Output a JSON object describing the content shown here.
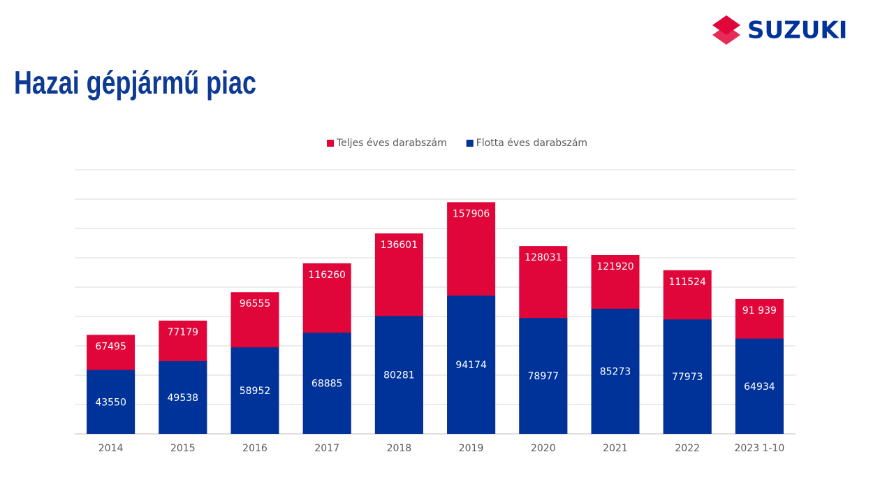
{
  "logo": "SUZUKI",
  "title": "Hazai gépjármű piac",
  "chart_data": {
    "type": "bar",
    "overlap": true,
    "categories": [
      "2014",
      "2015",
      "2016",
      "2017",
      "2018",
      "2019",
      "2020",
      "2021",
      "2022",
      "2023 1-10"
    ],
    "series": [
      {
        "name": "Teljes éves darabszám",
        "color": "#e0063a",
        "values": [
          67495,
          77179,
          96555,
          116260,
          136601,
          157906,
          128031,
          121920,
          111524,
          91939
        ],
        "value_labels": [
          "67495",
          "77179",
          "96555",
          "116260",
          "136601",
          "157906",
          "128031",
          "121920",
          "111524",
          "91 939"
        ]
      },
      {
        "name": "Flotta éves darabszám",
        "color": "#003399",
        "values": [
          43550,
          49538,
          58952,
          68885,
          80281,
          94174,
          78977,
          85273,
          77973,
          64934
        ]
      }
    ],
    "ylim": [
      0,
      180000
    ],
    "yticks": [
      0,
      20000,
      40000,
      60000,
      80000,
      100000,
      120000,
      140000,
      160000,
      180000
    ],
    "grid": true,
    "legend": "top"
  }
}
